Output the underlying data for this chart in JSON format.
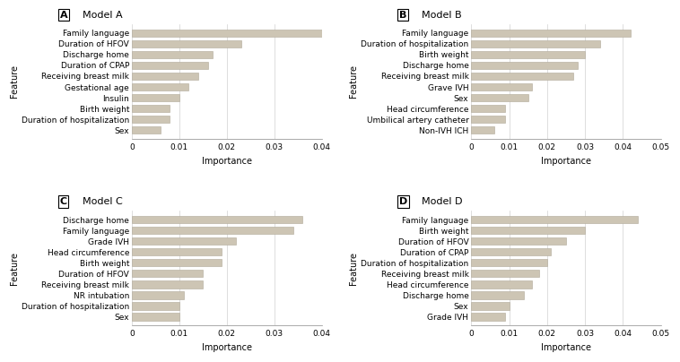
{
  "models": {
    "A": {
      "title": "Model A",
      "label": "A",
      "features": [
        "Family language",
        "Duration of HFOV",
        "Discharge home",
        "Duration of CPAP",
        "Receiving breast milk",
        "Gestational age",
        "Insulin",
        "Birth weight",
        "Duration of hospitalization",
        "Sex"
      ],
      "values": [
        0.04,
        0.023,
        0.017,
        0.016,
        0.014,
        0.012,
        0.01,
        0.008,
        0.008,
        0.006
      ],
      "xlim": [
        0,
        0.04
      ],
      "xticks": [
        0,
        0.01,
        0.02,
        0.03,
        0.04
      ]
    },
    "B": {
      "title": "Model B",
      "label": "B",
      "features": [
        "Family language",
        "Duration of hospitalization",
        "Birth weight",
        "Discharge home",
        "Receiving breast milk",
        "Grave IVH",
        "Sex",
        "Head circumference",
        "Umbilical artery catheter",
        "Non-IVH ICH"
      ],
      "values": [
        0.042,
        0.034,
        0.03,
        0.028,
        0.027,
        0.016,
        0.015,
        0.009,
        0.009,
        0.006
      ],
      "xlim": [
        0,
        0.05
      ],
      "xticks": [
        0,
        0.01,
        0.02,
        0.03,
        0.04,
        0.05
      ]
    },
    "C": {
      "title": "Model C",
      "label": "C",
      "features": [
        "Discharge home",
        "Family language",
        "Grade IVH",
        "Head circumference",
        "Birth weight",
        "Duration of HFOV",
        "Receiving breast milk",
        "NR intubation",
        "Duration of hospitalization",
        "Sex"
      ],
      "values": [
        0.036,
        0.034,
        0.022,
        0.019,
        0.019,
        0.015,
        0.015,
        0.011,
        0.01,
        0.01
      ],
      "xlim": [
        0,
        0.04
      ],
      "xticks": [
        0,
        0.01,
        0.02,
        0.03,
        0.04
      ]
    },
    "D": {
      "title": "Model D",
      "label": "D",
      "features": [
        "Family language",
        "Birth weight",
        "Duration of HFOV",
        "Duration of CPAP",
        "Duration of hospitalization",
        "Receiving breast milk",
        "Head circumference",
        "Discharge home",
        "Sex",
        "Grade IVH"
      ],
      "values": [
        0.044,
        0.03,
        0.025,
        0.021,
        0.02,
        0.018,
        0.016,
        0.014,
        0.01,
        0.009
      ],
      "xlim": [
        0,
        0.05
      ],
      "xticks": [
        0,
        0.01,
        0.02,
        0.03,
        0.04,
        0.05
      ]
    }
  },
  "bar_color": "#cdc5b4",
  "bar_edge_color": "#b0a898",
  "background_color": "#ffffff",
  "xlabel": "Importance",
  "ylabel": "Feature",
  "label_fontsize": 7,
  "title_fontsize": 8,
  "tick_fontsize": 6.5
}
